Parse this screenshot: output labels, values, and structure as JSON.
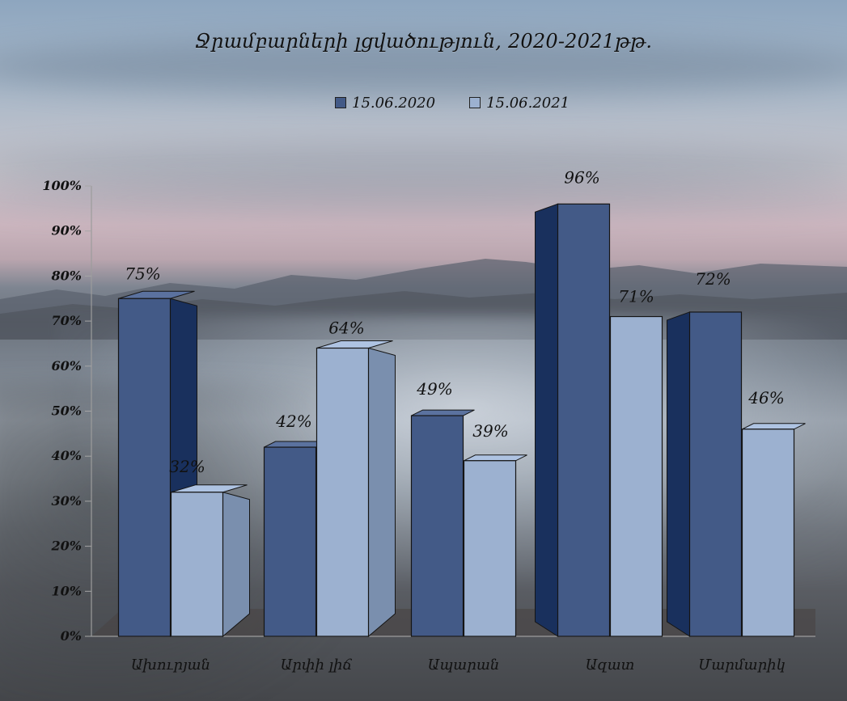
{
  "title": "Ջրամբարների լցվածություն,  2020-2021թթ.",
  "legend": [
    {
      "label": "15.06.2020",
      "color": "#435a87"
    },
    {
      "label": "15.06.2021",
      "color": "#9cb1d0"
    }
  ],
  "chart_data": {
    "type": "bar",
    "title": "Ջրամբարների լցվածություն,  2020-2021թթ.",
    "categories": [
      "Ախուրյան",
      "Արփի լիճ",
      "Ապարան",
      "Ազատ",
      "Մարմարիկ"
    ],
    "series": [
      {
        "name": "15.06.2020",
        "values": [
          75,
          42,
          49,
          96,
          72
        ],
        "color": "#435a87"
      },
      {
        "name": "15.06.2021",
        "values": [
          32,
          64,
          39,
          71,
          46
        ],
        "color": "#9cb1d0"
      }
    ],
    "data_labels": [
      [
        "75%",
        "42%",
        "49%",
        "96%",
        "72%"
      ],
      [
        "32%",
        "64%",
        "39%",
        "71%",
        "46%"
      ]
    ],
    "y_ticks": [
      "0%",
      "10%",
      "20%",
      "30%",
      "40%",
      "50%",
      "60%",
      "70%",
      "80%",
      "90%",
      "100%"
    ],
    "ylim": [
      0,
      100
    ],
    "legend_position": "top-center",
    "grid": false,
    "xlabel": "",
    "ylabel": ""
  }
}
